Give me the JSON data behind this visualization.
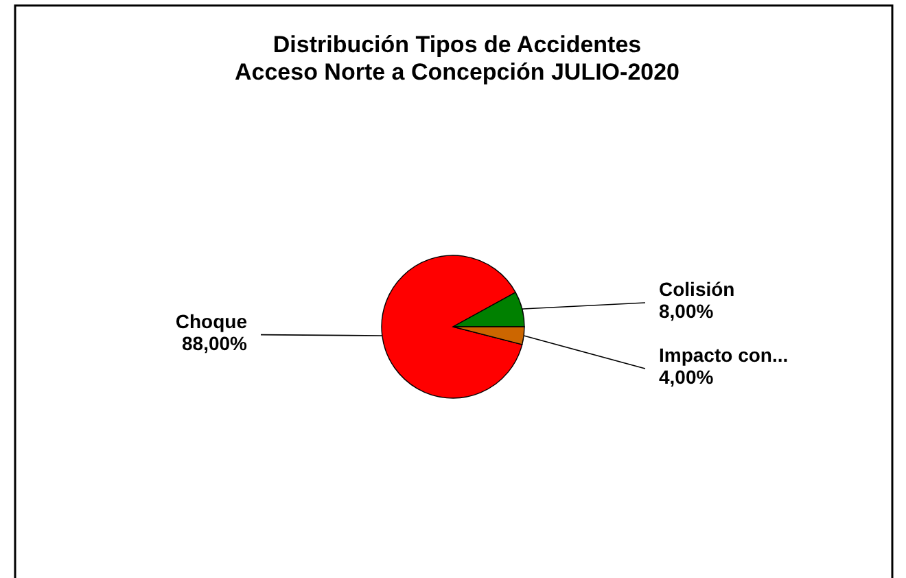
{
  "chart_data": {
    "type": "pie",
    "title": "Distribución Tipos de Accidentes\nAcceso Norte a Concepción JULIO-2020",
    "categories": [
      "Choque",
      "Colisión",
      "Impacto  con..."
    ],
    "values": [
      88,
      8,
      4
    ],
    "colors": [
      "#ff0000",
      "#008000",
      "#cc6600"
    ],
    "value_labels": [
      "88,00%",
      "8,00%",
      "4,00%"
    ]
  }
}
